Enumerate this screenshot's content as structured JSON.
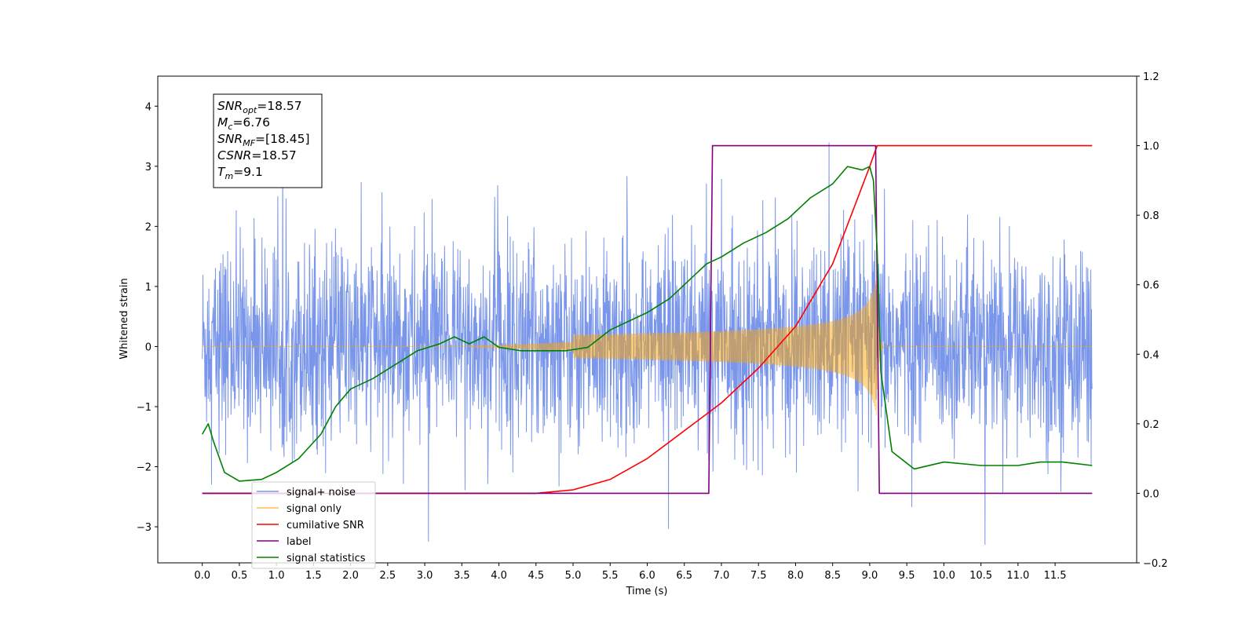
{
  "chart_data": {
    "type": "line",
    "xlabel": "Time (s)",
    "ylabel": "Whitened strain",
    "xlim": [
      -0.6,
      12.6
    ],
    "ylim_left": [
      -3.6,
      4.5
    ],
    "ylim_right": [
      -0.2,
      1.2
    ],
    "x_ticks": [
      "0.0",
      "0.5",
      "1.0",
      "1.5",
      "2.0",
      "2.5",
      "3.0",
      "3.5",
      "4.0",
      "4.5",
      "5.0",
      "5.5",
      "6.0",
      "6.5",
      "7.0",
      "7.5",
      "8.0",
      "8.5",
      "9.0",
      "9.5",
      "10.0",
      "10.5",
      "11.0",
      "11.5"
    ],
    "y_ticks_left": [
      "−3",
      "−2",
      "−1",
      "0",
      "1",
      "2",
      "3",
      "4"
    ],
    "y_ticks_right": [
      "−0.2",
      "0.0",
      "0.2",
      "0.4",
      "0.6",
      "0.8",
      "1.0",
      "1.2"
    ],
    "grid": false,
    "legend_position": "lower-left",
    "info_box": {
      "lines": [
        {
          "main": "SNR",
          "sub": "opt",
          "value": "=18.57"
        },
        {
          "main": "M",
          "sub": "c",
          "value": "=6.76"
        },
        {
          "main": "SNR",
          "sub": "MF",
          "value": "=[18.45]"
        },
        {
          "main": "CSNR",
          "sub": "",
          "value": "=18.57"
        },
        {
          "main": "T",
          "sub": "m",
          "value": "=9.1"
        }
      ]
    },
    "series": [
      {
        "name": "signal+ noise",
        "axis": "left",
        "color": "#4169e1",
        "kind": "noise_band",
        "x_range": [
          0.0,
          12.0
        ],
        "envelope": [
          -3.3,
          4.1
        ],
        "typical_band": [
          -1.7,
          2.2
        ]
      },
      {
        "name": "signal only",
        "axis": "left",
        "color": "#ffa500",
        "kind": "chirp",
        "x_range": [
          0.0,
          12.0
        ],
        "merger_time": 9.1,
        "peak_amplitude": 1.25,
        "start_time": 5.0
      },
      {
        "name": "cumilative SNR",
        "axis": "right",
        "color": "#ff0000",
        "x": [
          0.0,
          4.5,
          5.0,
          5.5,
          6.0,
          6.5,
          7.0,
          7.5,
          8.0,
          8.5,
          9.0,
          9.1,
          12.0
        ],
        "y": [
          0.0,
          0.0,
          0.01,
          0.04,
          0.1,
          0.18,
          0.26,
          0.36,
          0.48,
          0.66,
          0.94,
          1.0,
          1.0
        ]
      },
      {
        "name": "label",
        "axis": "right",
        "color": "#800080",
        "x": [
          0.0,
          6.83,
          6.88,
          9.08,
          9.13,
          12.0
        ],
        "y": [
          0.0,
          0.0,
          1.0,
          1.0,
          0.0,
          0.0
        ]
      },
      {
        "name": "signal statistics",
        "axis": "right",
        "color": "#008000",
        "x": [
          0.0,
          0.08,
          0.15,
          0.3,
          0.5,
          0.8,
          1.0,
          1.3,
          1.6,
          1.8,
          2.0,
          2.3,
          2.6,
          2.9,
          3.2,
          3.4,
          3.6,
          3.8,
          4.0,
          4.3,
          4.6,
          4.9,
          5.2,
          5.5,
          5.8,
          6.0,
          6.3,
          6.5,
          6.8,
          7.0,
          7.3,
          7.6,
          7.9,
          8.2,
          8.5,
          8.7,
          8.9,
          9.0,
          9.05,
          9.1,
          9.15,
          9.3,
          9.6,
          10.0,
          10.5,
          11.0,
          11.3,
          11.6,
          12.0
        ],
        "y": [
          0.17,
          0.2,
          0.15,
          0.06,
          0.035,
          0.04,
          0.06,
          0.1,
          0.17,
          0.25,
          0.3,
          0.33,
          0.37,
          0.41,
          0.43,
          0.45,
          0.43,
          0.45,
          0.42,
          0.41,
          0.41,
          0.41,
          0.42,
          0.47,
          0.5,
          0.52,
          0.56,
          0.6,
          0.66,
          0.68,
          0.72,
          0.75,
          0.79,
          0.85,
          0.89,
          0.94,
          0.93,
          0.94,
          0.9,
          0.7,
          0.35,
          0.12,
          0.07,
          0.09,
          0.08,
          0.08,
          0.09,
          0.09,
          0.08
        ]
      }
    ],
    "legend": [
      {
        "label": "signal+ noise",
        "color": "#4169e1"
      },
      {
        "label": "signal only",
        "color": "#ffa500"
      },
      {
        "label": "cumilative SNR",
        "color": "#ff0000"
      },
      {
        "label": "label",
        "color": "#800080"
      },
      {
        "label": "signal statistics",
        "color": "#008000"
      }
    ]
  }
}
